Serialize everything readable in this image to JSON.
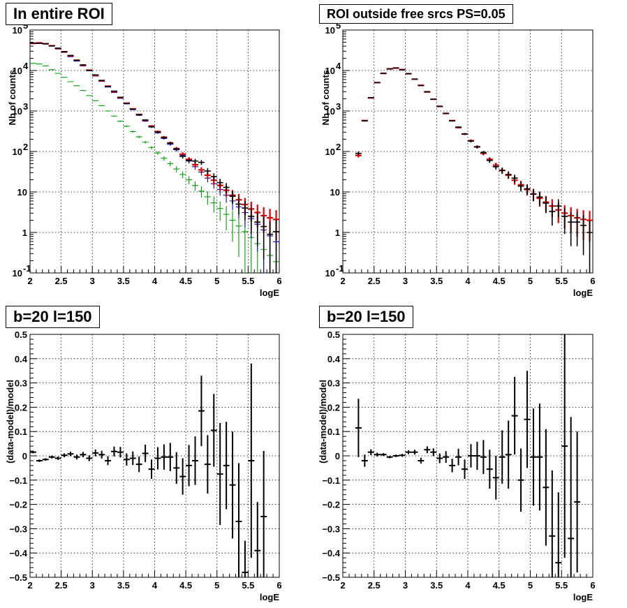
{
  "chart_data": [
    {
      "type": "scatter",
      "title": "In entire ROI",
      "xlabel": "logE",
      "ylabel": "Nb of counts",
      "yscale": "log",
      "xlim": [
        2,
        6
      ],
      "ylim": [
        0.1,
        100000
      ],
      "x_ticks": [
        "2",
        "2.5",
        "3",
        "3.5",
        "4",
        "4.5",
        "5",
        "5.5",
        "6"
      ],
      "y_ticks": [
        "10^-1",
        "1",
        "10",
        "10^2",
        "10^3",
        "10^4",
        "10^5"
      ],
      "grid": true,
      "series": [
        {
          "color": "#00a000",
          "x": [
            2.05,
            2.15,
            2.25,
            2.35,
            2.45,
            2.55,
            2.65,
            2.75,
            2.85,
            2.95,
            3.05,
            3.15,
            3.25,
            3.35,
            3.45,
            3.55,
            3.65,
            3.75,
            3.85,
            3.95,
            4.05,
            4.15,
            4.25,
            4.35,
            4.45,
            4.55,
            4.65,
            4.75,
            4.85,
            4.95,
            5.05,
            5.15,
            5.25,
            5.35,
            5.45,
            5.55,
            5.65,
            5.75,
            5.85,
            5.95
          ],
          "y": [
            15000,
            14500,
            13000,
            10500,
            8500,
            6800,
            5300,
            4200,
            3200,
            2400,
            1800,
            1350,
            1000,
            750,
            560,
            420,
            310,
            230,
            170,
            125,
            92,
            68,
            50,
            37,
            27,
            20,
            14.5,
            10.5,
            7.6,
            5.4,
            3.9,
            2.8,
            2.0,
            1.45,
            1.05,
            0.75,
            0.53,
            0.38,
            0.27,
            0.19
          ]
        },
        {
          "color": "#0000cc",
          "x": [
            2.05,
            2.15,
            2.25,
            2.35,
            2.45,
            2.55,
            2.65,
            2.75,
            2.85,
            2.95,
            3.05,
            3.15,
            3.25,
            3.35,
            3.45,
            3.55,
            3.65,
            3.75,
            3.85,
            3.95,
            4.05,
            4.15,
            4.25,
            4.35,
            4.45,
            4.55,
            4.65,
            4.75,
            4.85,
            4.95,
            5.05,
            5.15,
            5.25,
            5.35,
            5.45,
            5.55,
            5.65,
            5.75,
            5.85,
            5.95
          ],
          "y": [
            46000,
            47000,
            45000,
            40000,
            34000,
            28000,
            22000,
            17000,
            13000,
            9800,
            7300,
            5400,
            3900,
            2850,
            2050,
            1500,
            1080,
            780,
            560,
            400,
            290,
            210,
            150,
            110,
            80,
            58,
            42,
            31,
            22,
            16,
            11.5,
            8.3,
            6.0,
            4.3,
            3.1,
            2.2,
            1.6,
            1.15,
            0.82,
            0.59
          ]
        },
        {
          "color": "#e00000",
          "x": [
            2.05,
            2.15,
            2.25,
            2.35,
            2.45,
            2.55,
            2.65,
            2.75,
            2.85,
            2.95,
            3.05,
            3.15,
            3.25,
            3.35,
            3.45,
            3.55,
            3.65,
            3.75,
            3.85,
            3.95,
            4.05,
            4.15,
            4.25,
            4.35,
            4.45,
            4.55,
            4.65,
            4.75,
            4.85,
            4.95,
            5.05,
            5.15,
            5.25,
            5.35,
            5.45,
            5.55,
            5.65,
            5.75,
            5.85,
            5.95
          ],
          "y": [
            47000,
            48000,
            46000,
            41000,
            35000,
            29000,
            23000,
            18000,
            13500,
            10200,
            7600,
            5600,
            4100,
            3000,
            2150,
            1560,
            1130,
            820,
            590,
            425,
            310,
            225,
            162,
            118,
            86,
            64,
            47,
            35,
            26,
            19.5,
            14.5,
            11,
            8.3,
            6.4,
            4.9,
            3.8,
            3.1,
            2.6,
            2.3,
            2.1
          ]
        },
        {
          "color": "#000000",
          "x": [
            2.05,
            2.15,
            2.25,
            2.35,
            2.45,
            2.55,
            2.65,
            2.75,
            2.85,
            2.95,
            3.05,
            3.15,
            3.25,
            3.35,
            3.45,
            3.55,
            3.65,
            3.75,
            3.85,
            3.95,
            4.05,
            4.15,
            4.25,
            4.35,
            4.45,
            4.55,
            4.65,
            4.75,
            4.85,
            4.95,
            5.05,
            5.15,
            5.25,
            5.35,
            5.45,
            5.55,
            5.65,
            5.75,
            5.85,
            5.95
          ],
          "y": [
            47500,
            47000,
            45500,
            40500,
            35500,
            29500,
            23500,
            17800,
            13800,
            10100,
            7800,
            5700,
            4050,
            3100,
            2180,
            1540,
            1110,
            810,
            600,
            410,
            300,
            220,
            160,
            115,
            76,
            60,
            58,
            54,
            33,
            24,
            17,
            13,
            7.8,
            5,
            4,
            2.5,
            1.8,
            1.4,
            0.9,
            1.05
          ]
        }
      ]
    },
    {
      "type": "scatter",
      "title": "ROI outside free srcs PS=0.05",
      "xlabel": "logE",
      "ylabel": "Nb of counts",
      "yscale": "log",
      "xlim": [
        2,
        6
      ],
      "ylim": [
        0.1,
        100000
      ],
      "x_ticks": [
        "2",
        "2.5",
        "3",
        "3.5",
        "4",
        "4.5",
        "5",
        "5.5",
        "6"
      ],
      "y_ticks": [
        "10^-1",
        "1",
        "10",
        "10^2",
        "10^3",
        "10^4",
        "10^5"
      ],
      "grid": true,
      "series": [
        {
          "color": "#e00000",
          "x": [
            2.25,
            2.35,
            2.45,
            2.55,
            2.65,
            2.75,
            2.85,
            2.95,
            3.05,
            3.15,
            3.25,
            3.35,
            3.45,
            3.55,
            3.65,
            3.75,
            3.85,
            3.95,
            4.05,
            4.15,
            4.25,
            4.35,
            4.45,
            4.55,
            4.65,
            4.75,
            4.85,
            4.95,
            5.05,
            5.15,
            5.25,
            5.35,
            5.45,
            5.55,
            5.65,
            5.75,
            5.85,
            5.95
          ],
          "y": [
            80,
            580,
            2100,
            5000,
            8500,
            11000,
            11500,
            10500,
            8300,
            6100,
            4300,
            2950,
            1950,
            1300,
            870,
            580,
            390,
            270,
            185,
            130,
            90,
            64,
            46,
            34,
            26,
            19.5,
            15,
            11.5,
            8.9,
            7,
            5.6,
            4.5,
            3.6,
            3.0,
            2.6,
            2.3,
            2.1,
            2.0
          ]
        },
        {
          "color": "#000000",
          "x": [
            2.25,
            2.35,
            2.45,
            2.55,
            2.65,
            2.75,
            2.85,
            2.95,
            3.05,
            3.15,
            3.25,
            3.35,
            3.45,
            3.55,
            3.65,
            3.75,
            3.85,
            3.95,
            4.05,
            4.15,
            4.25,
            4.35,
            4.45,
            4.55,
            4.65,
            4.75,
            4.85,
            4.95,
            5.05,
            5.15,
            5.25,
            5.35,
            5.45,
            5.55,
            5.65,
            5.75,
            5.85,
            5.95
          ],
          "y": [
            90,
            570,
            2130,
            5050,
            8550,
            10950,
            11600,
            10450,
            8400,
            6150,
            4250,
            3000,
            1950,
            1300,
            870,
            570,
            400,
            270,
            180,
            130,
            94,
            60,
            42,
            34,
            27,
            22,
            14,
            12,
            8.9,
            7.5,
            5.3,
            3.3,
            4.5,
            2.5,
            1.8,
            1.8,
            1.5,
            1.0
          ]
        }
      ]
    },
    {
      "type": "scatter",
      "title": "b=20 l=150",
      "xlabel": "logE",
      "ylabel": "(data-model)/model",
      "xlim": [
        2,
        6
      ],
      "ylim": [
        -0.5,
        0.5
      ],
      "x_ticks": [
        "2",
        "2.5",
        "3",
        "3.5",
        "4",
        "4.5",
        "5",
        "5.5",
        "6"
      ],
      "y_ticks": [
        "-0.5",
        "-0.4",
        "-0.3",
        "-0.2",
        "-0.1",
        "0",
        "0.1",
        "0.2",
        "0.3",
        "0.4",
        "0.5"
      ],
      "grid": true,
      "series": [
        {
          "color": "#000000",
          "x": [
            2.05,
            2.15,
            2.25,
            2.35,
            2.45,
            2.55,
            2.65,
            2.75,
            2.85,
            2.95,
            3.05,
            3.15,
            3.25,
            3.35,
            3.45,
            3.55,
            3.65,
            3.75,
            3.85,
            3.95,
            4.05,
            4.15,
            4.25,
            4.35,
            4.45,
            4.55,
            4.65,
            4.75,
            4.85,
            4.95,
            5.05,
            5.15,
            5.25,
            5.35,
            5.45,
            5.55,
            5.65,
            5.75
          ],
          "y": [
            0.015,
            -0.02,
            -0.015,
            -0.005,
            -0.01,
            0.002,
            0.008,
            -0.005,
            0.005,
            -0.01,
            0.012,
            0.005,
            -0.02,
            0.018,
            0.015,
            -0.015,
            -0.01,
            -0.035,
            0.01,
            -0.055,
            -0.01,
            -0.005,
            -0.005,
            -0.05,
            -0.085,
            -0.04,
            -0.02,
            0.185,
            -0.035,
            0.105,
            -0.075,
            -0.04,
            -0.12,
            -0.27,
            -0.48,
            -0.02,
            -0.39,
            -0.25
          ],
          "err": [
            0.005,
            0.005,
            0.005,
            0.006,
            0.007,
            0.008,
            0.009,
            0.01,
            0.011,
            0.012,
            0.014,
            0.016,
            0.018,
            0.02,
            0.022,
            0.025,
            0.028,
            0.032,
            0.036,
            0.04,
            0.046,
            0.052,
            0.058,
            0.065,
            0.075,
            0.085,
            0.1,
            0.145,
            0.12,
            0.15,
            0.21,
            0.18,
            0.22,
            0.24,
            0.13,
            0.4,
            0.2,
            0.27
          ]
        }
      ]
    },
    {
      "type": "scatter",
      "title": "b=20 l=150",
      "xlabel": "logE",
      "ylabel": "(data-model)/model",
      "xlim": [
        2,
        6
      ],
      "ylim": [
        -0.5,
        0.5
      ],
      "x_ticks": [
        "2",
        "2.5",
        "3",
        "3.5",
        "4",
        "4.5",
        "5",
        "5.5",
        "6"
      ],
      "y_ticks": [
        "-0.5",
        "-0.4",
        "-0.3",
        "-0.2",
        "-0.1",
        "0",
        "0.1",
        "0.2",
        "0.3",
        "0.4",
        "0.5"
      ],
      "grid": true,
      "series": [
        {
          "color": "#000000",
          "x": [
            2.25,
            2.35,
            2.45,
            2.55,
            2.65,
            2.75,
            2.85,
            2.95,
            3.05,
            3.15,
            3.25,
            3.35,
            3.45,
            3.55,
            3.65,
            3.75,
            3.85,
            3.95,
            4.05,
            4.15,
            4.25,
            4.35,
            4.45,
            4.55,
            4.65,
            4.75,
            4.85,
            4.95,
            5.05,
            5.15,
            5.25,
            5.35,
            5.45,
            5.55,
            5.65,
            5.75
          ],
          "y": [
            0.115,
            -0.02,
            0.015,
            0.005,
            0.005,
            -0.005,
            0,
            0.002,
            0.015,
            0.015,
            -0.02,
            0.025,
            0.015,
            -0.01,
            -0.005,
            -0.04,
            -0.005,
            -0.055,
            0,
            0,
            -0.005,
            -0.055,
            -0.09,
            -0.005,
            0.005,
            0.165,
            -0.1,
            0.15,
            -0.005,
            -0.005,
            -0.13,
            -0.33,
            -0.44,
            0.04,
            -0.34,
            -0.19
          ],
          "err": [
            0.12,
            0.025,
            0.012,
            0.008,
            0.006,
            0.005,
            0.005,
            0.006,
            0.008,
            0.01,
            0.012,
            0.014,
            0.016,
            0.02,
            0.024,
            0.028,
            0.034,
            0.04,
            0.048,
            0.058,
            0.07,
            0.08,
            0.09,
            0.11,
            0.14,
            0.16,
            0.13,
            0.2,
            0.2,
            0.22,
            0.24,
            0.27,
            0.29,
            0.46,
            0.5,
            0.29
          ]
        }
      ]
    }
  ]
}
